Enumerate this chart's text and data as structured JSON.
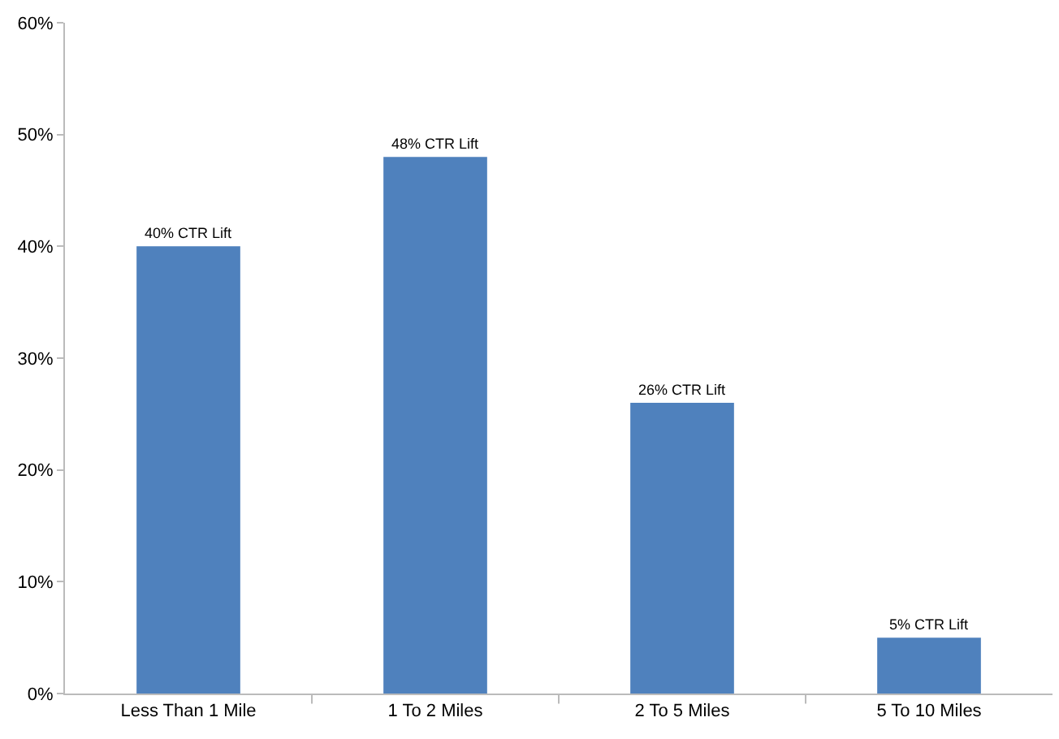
{
  "chart_data": {
    "type": "bar",
    "categories": [
      "Less Than 1 Mile",
      "1 To 2 Miles",
      "2 To 5 Miles",
      "5 To 10 Miles"
    ],
    "values": [
      40,
      48,
      26,
      5
    ],
    "color": "#4f81bd",
    "value_labels": [
      "40% CTR Lift",
      "48% CTR Lift",
      "26% CTR Lift",
      "5% CTR Lift"
    ],
    "ylim": [
      0,
      60
    ],
    "yticks": [
      {
        "value": 0,
        "label": "0%"
      },
      {
        "value": 10,
        "label": "10%"
      },
      {
        "value": 20,
        "label": "20%"
      },
      {
        "value": 30,
        "label": "30%"
      },
      {
        "value": 40,
        "label": "40%"
      },
      {
        "value": 50,
        "label": "50%"
      },
      {
        "value": 60,
        "label": "60%"
      }
    ],
    "grid": false,
    "legend": false
  }
}
